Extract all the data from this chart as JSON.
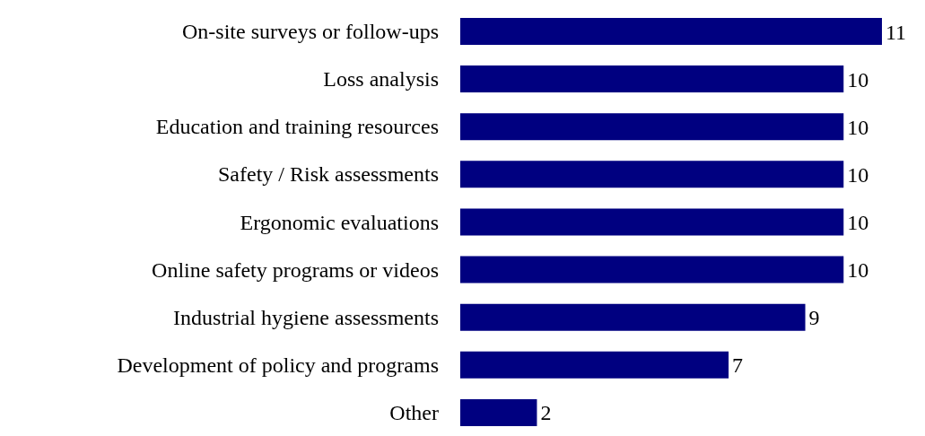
{
  "chart_data": {
    "type": "bar",
    "orientation": "horizontal",
    "categories": [
      "On-site surveys or follow-ups",
      "Loss analysis",
      "Education and training resources",
      "Safety / Risk assessments",
      "Ergonomic evaluations",
      "Online safety programs or videos",
      "Industrial hygiene assessments",
      "Development of policy and programs",
      "Other"
    ],
    "values": [
      11,
      10,
      10,
      10,
      10,
      10,
      9,
      7,
      2
    ],
    "color": "#000080",
    "data_labels": true
  }
}
